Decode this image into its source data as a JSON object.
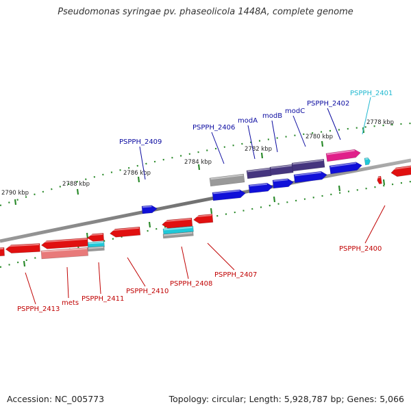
{
  "title": "Pseudomonas syringae pv. phaseolicola 1448A, complete genome",
  "footer": {
    "accession": "Accession: NC_005773",
    "topology": "Topology: circular; Length: 5,928,787 bp; Genes: 5,066"
  },
  "colors": {
    "plus_cds": "#1010d8",
    "minus_cds": "#e01010",
    "pseudo": "#999999",
    "operon_mod": "#45357e",
    "magenta": "#e0208a",
    "cyan": "#20c8d8",
    "pink": "#e87a7a",
    "label_blue": "#0a0aa0",
    "label_red": "#c00000",
    "label_cyan": "#20b8d0",
    "backbone": "#808080",
    "tick": "#2a8a2a"
  },
  "icons": {
    "backbone": "genome-backbone-arc",
    "arrow": "gene-arrow-glyph"
  },
  "ticks": [
    {
      "label": "2778 kbp"
    },
    {
      "label": "2780 kbp"
    },
    {
      "label": "2782 kbp"
    },
    {
      "label": "2784 kbp"
    },
    {
      "label": "2786 kbp"
    },
    {
      "label": "2788 kbp"
    },
    {
      "label": "2790 kbp"
    }
  ],
  "labels": [
    {
      "text": "PSPPH_2401",
      "strand": "plus",
      "color": "cyan"
    },
    {
      "text": "PSPPH_2402",
      "strand": "plus",
      "color": "blue"
    },
    {
      "text": "modC",
      "strand": "plus",
      "color": "blue"
    },
    {
      "text": "modB",
      "strand": "plus",
      "color": "blue"
    },
    {
      "text": "modA",
      "strand": "plus",
      "color": "blue"
    },
    {
      "text": "PSPPH_2406",
      "strand": "plus",
      "color": "blue"
    },
    {
      "text": "PSPPH_2409",
      "strand": "plus",
      "color": "blue"
    },
    {
      "text": "PSPPH_2400",
      "strand": "minus",
      "color": "red"
    },
    {
      "text": "PSPPH_2407",
      "strand": "minus",
      "color": "red"
    },
    {
      "text": "PSPPH_2408",
      "strand": "minus",
      "color": "red"
    },
    {
      "text": "PSPPH_2410",
      "strand": "minus",
      "color": "red"
    },
    {
      "text": "PSPPH_2411",
      "strand": "minus",
      "color": "red"
    },
    {
      "text": "mets",
      "strand": "minus",
      "color": "red"
    },
    {
      "text": "PSPPH_2413",
      "strand": "minus",
      "color": "red"
    }
  ]
}
